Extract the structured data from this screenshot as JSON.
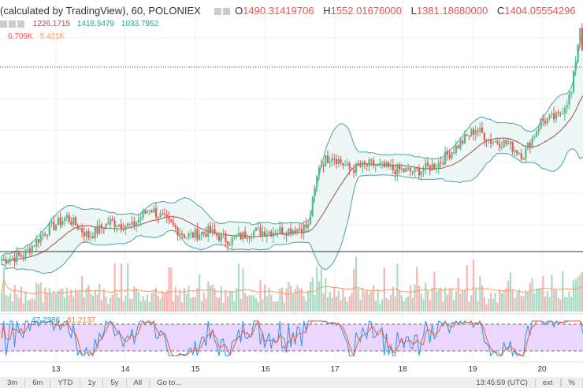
{
  "header": {
    "symbol": "(calculated by TradingView), 60, POLONIEX",
    "open_label": "O",
    "open": "1490.31419706",
    "high_label": "H",
    "high": "1552.01676000",
    "low_label": "L",
    "low": "1381.18680000",
    "close_label": "C",
    "close": "1404.05554296"
  },
  "bollinger": {
    "basis": "1226.1715",
    "upper": "1418.5479",
    "lower": "1033.7952"
  },
  "volume": {
    "value": "6.709K",
    "ma": "5.421K"
  },
  "stoch": {
    "k": "47.2386",
    "d": "81.2137"
  },
  "xaxis": {
    "labels": [
      "13",
      "14",
      "15",
      "16",
      "17",
      "18",
      "19",
      "20"
    ]
  },
  "footer": {
    "ranges": [
      "3m",
      "6m",
      "YTD",
      "1y",
      "5y",
      "All",
      "Go to..."
    ],
    "time": "13:45:59 (UTC)",
    "ext": "ext",
    "pct": "%"
  },
  "colors": {
    "up": "#26a69a",
    "up_fill": "#53b987",
    "down": "#ef5350",
    "bb": "#4aa3a8",
    "basis": "#a05050",
    "stoch_k": "#2196f3",
    "stoch_d": "#ff5722",
    "stoch_bg": "#e6ccff"
  },
  "chart_data": {
    "type": "candlestick",
    "interval_hours": 1,
    "keypoints": [
      [
        0,
        1000
      ],
      [
        10,
        1010
      ],
      [
        20,
        1060
      ],
      [
        30,
        1090
      ],
      [
        40,
        1050
      ],
      [
        50,
        1080
      ],
      [
        60,
        1070
      ],
      [
        68,
        1110
      ],
      [
        76,
        1080
      ],
      [
        85,
        1050
      ],
      [
        95,
        1060
      ],
      [
        105,
        1040
      ],
      [
        115,
        1060
      ],
      [
        125,
        1060
      ],
      [
        135,
        1065
      ],
      [
        141,
        1070
      ],
      [
        146,
        1200
      ],
      [
        152,
        1220
      ],
      [
        160,
        1190
      ],
      [
        170,
        1200
      ],
      [
        180,
        1190
      ],
      [
        190,
        1185
      ],
      [
        200,
        1200
      ],
      [
        210,
        1240
      ],
      [
        218,
        1275
      ],
      [
        225,
        1250
      ],
      [
        232,
        1245
      ],
      [
        240,
        1220
      ],
      [
        248,
        1290
      ],
      [
        256,
        1300
      ],
      [
        262,
        1350
      ],
      [
        266,
        1490
      ],
      [
        268,
        1404
      ]
    ],
    "ylim": [
      960,
      1560
    ],
    "last_price": 1404.06
  }
}
